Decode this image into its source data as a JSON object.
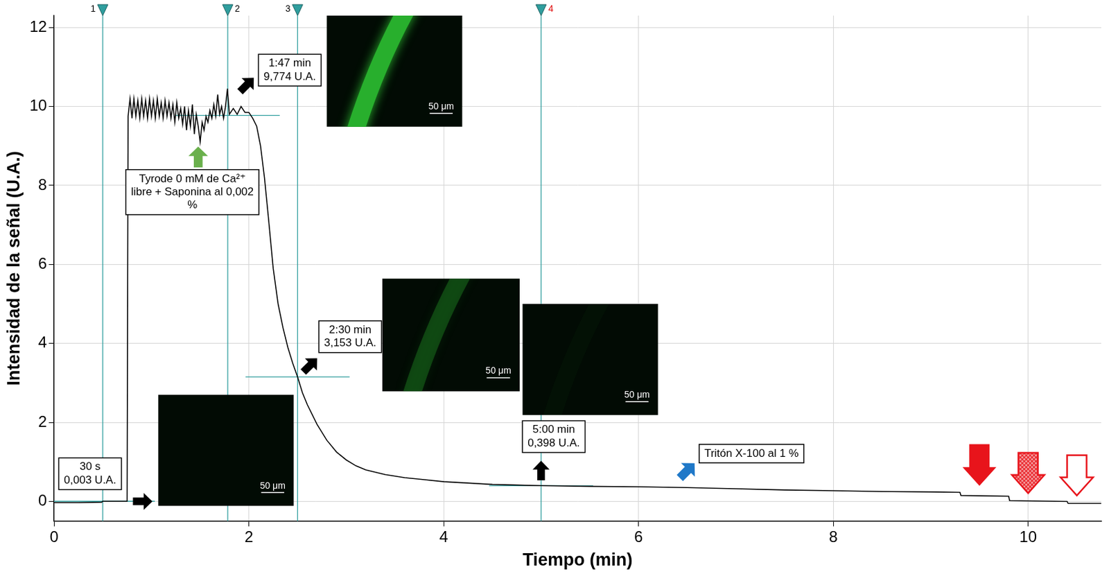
{
  "chart_data": {
    "type": "line",
    "x_label": "Tiempo (min)",
    "y_label": "Intensidad de la señal (U.A.)",
    "color": "#000000",
    "grid": true,
    "xlim": [
      0,
      10.75
    ],
    "ylim": [
      -0.5,
      12.3
    ],
    "xticks": [
      0,
      2,
      4,
      6,
      8,
      10
    ],
    "yticks": [
      0,
      2,
      4,
      6,
      8,
      10,
      12
    ],
    "x": [
      0,
      0.25,
      0.49,
      0.5,
      0.74,
      0.75,
      0.76,
      0.78,
      0.8,
      0.82,
      0.84,
      0.86,
      0.88,
      0.9,
      0.92,
      0.94,
      0.96,
      0.98,
      1.0,
      1.02,
      1.04,
      1.06,
      1.08,
      1.1,
      1.12,
      1.14,
      1.16,
      1.18,
      1.2,
      1.22,
      1.24,
      1.26,
      1.28,
      1.3,
      1.32,
      1.34,
      1.36,
      1.38,
      1.4,
      1.42,
      1.44,
      1.46,
      1.48,
      1.5,
      1.52,
      1.54,
      1.56,
      1.58,
      1.6,
      1.62,
      1.64,
      1.66,
      1.68,
      1.7,
      1.72,
      1.74,
      1.76,
      1.78,
      1.8,
      1.84,
      1.88,
      1.92,
      1.96,
      2.0,
      2.04,
      2.08,
      2.12,
      2.16,
      2.2,
      2.25,
      2.3,
      2.35,
      2.4,
      2.45,
      2.5,
      2.55,
      2.6,
      2.7,
      2.8,
      2.9,
      3.0,
      3.1,
      3.2,
      3.4,
      3.6,
      3.8,
      4.0,
      4.5,
      5.0,
      5.5,
      6.0,
      6.5,
      7.0,
      7.5,
      8.0,
      8.5,
      9.0,
      9.3,
      9.31,
      9.8,
      9.81,
      10.4,
      10.41,
      10.75
    ],
    "values": [
      -0.03,
      -0.03,
      -0.02,
      0.003,
      0.003,
      0.003,
      9.75,
      10.2,
      9.7,
      10.2,
      9.75,
      10.15,
      9.7,
      10.2,
      9.75,
      10.15,
      9.7,
      10.2,
      9.75,
      10.15,
      9.7,
      10.2,
      9.75,
      10.1,
      9.7,
      10.15,
      9.75,
      10.1,
      9.7,
      10.05,
      9.6,
      10.1,
      9.7,
      9.95,
      9.55,
      10.0,
      9.4,
      9.9,
      9.5,
      10.05,
      9.3,
      9.8,
      9.5,
      9.1,
      9.6,
      9.4,
      9.75,
      9.6,
      9.9,
      9.7,
      10.05,
      9.75,
      10.3,
      9.8,
      10.0,
      9.7,
      10.0,
      10.45,
      9.8,
      9.95,
      9.8,
      10.0,
      9.85,
      9.85,
      9.7,
      9.5,
      9.0,
      8.2,
      7.2,
      5.9,
      5.0,
      4.4,
      3.9,
      3.5,
      3.15,
      2.75,
      2.45,
      1.95,
      1.55,
      1.25,
      1.05,
      0.9,
      0.8,
      0.68,
      0.6,
      0.55,
      0.5,
      0.43,
      0.4,
      0.38,
      0.37,
      0.35,
      0.32,
      0.29,
      0.27,
      0.25,
      0.24,
      0.23,
      0.15,
      0.13,
      0.02,
      0.0,
      -0.05,
      -0.05
    ],
    "cursors": [
      {
        "label": "1",
        "x": 0.5,
        "time_label": "30 s",
        "value": 0.003,
        "value_label": "0,003 U.A.",
        "color": "#000000"
      },
      {
        "label": "2",
        "x": 1.783,
        "time_label": "1:47 min",
        "value": 9.774,
        "value_label": "9,774 U.A.",
        "color": "#000000"
      },
      {
        "label": "3",
        "x": 2.5,
        "time_label": "2:30 min",
        "value": 3.153,
        "value_label": "3,153 U.A.",
        "color": "#000000"
      },
      {
        "label": "4",
        "x": 5.0,
        "time_label": "5:00 min",
        "value": 0.398,
        "value_label": "0,398 U.A.",
        "color": "#e01010"
      }
    ],
    "annotations": [
      {
        "text": "Tyrode 0 mM de Ca²⁺ libre + Saponina al 0,002 %"
      },
      {
        "text": "Tritón X-100 al 1 %"
      }
    ],
    "scale_bar_label": "50 μm"
  }
}
